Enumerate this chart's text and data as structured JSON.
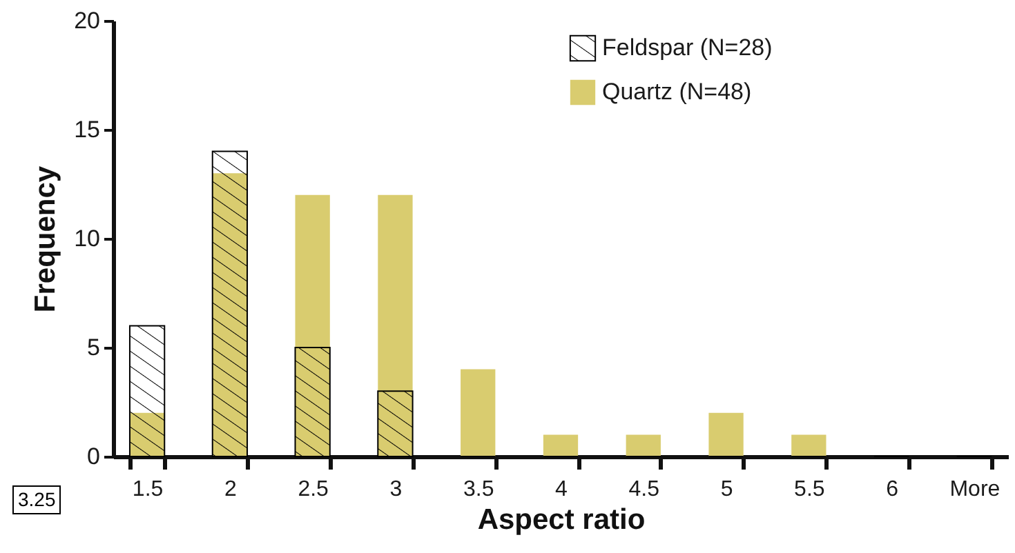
{
  "chart_data": {
    "type": "bar",
    "xlabel": "Aspect ratio",
    "ylabel": "Frequency",
    "categories": [
      "1.5",
      "2",
      "2.5",
      "3",
      "3.5",
      "4",
      "4.5",
      "5",
      "5.5",
      "6",
      "More"
    ],
    "series": [
      {
        "name": "Feldspar (N=28)",
        "color": "#000000",
        "values": [
          6,
          14,
          5,
          3,
          0,
          0,
          0,
          0,
          0,
          0,
          0
        ]
      },
      {
        "name": "Quartz (N=48)",
        "color": "#d9cc6f",
        "values": [
          2,
          13,
          12,
          12,
          4,
          1,
          1,
          2,
          1,
          0,
          0
        ]
      }
    ],
    "ylim": [
      0,
      20
    ],
    "yticks": [
      0,
      5,
      10,
      15,
      20
    ],
    "grid": false,
    "legend": "top right",
    "annotations": [
      "3.25"
    ]
  }
}
